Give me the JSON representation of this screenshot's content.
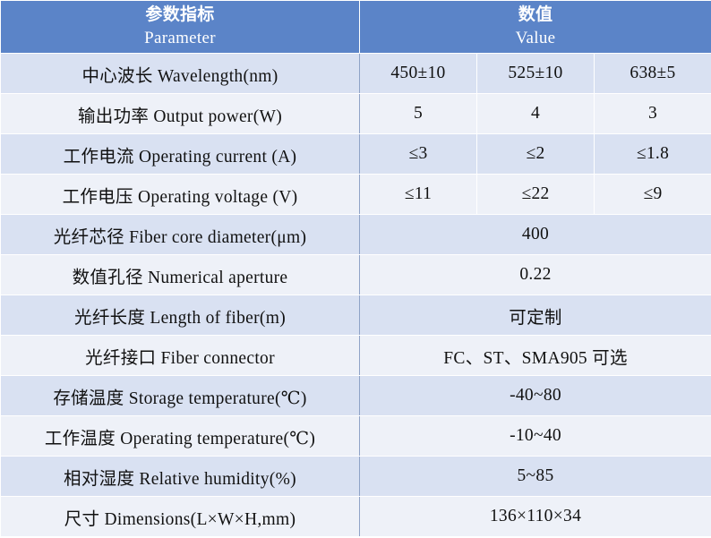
{
  "header": {
    "param_cn": "参数指标",
    "param_en": "Parameter",
    "value_cn": "数值",
    "value_en": "Value"
  },
  "rows": [
    {
      "label": "中心波长 Wavelength(nm)",
      "values": [
        "450±10",
        "525±10",
        "638±5"
      ]
    },
    {
      "label": "输出功率 Output power(W)",
      "values": [
        "5",
        "4",
        "3"
      ]
    },
    {
      "label": "工作电流 Operating current (A)",
      "values": [
        "≤3",
        "≤2",
        "≤1.8"
      ]
    },
    {
      "label": "工作电压 Operating voltage (V)",
      "values": [
        "≤11",
        "≤22",
        "≤9"
      ]
    },
    {
      "label": "光纤芯径 Fiber core diameter(μm)",
      "value": "400"
    },
    {
      "label": "数值孔径 Numerical aperture",
      "value": "0.22"
    },
    {
      "label": "光纤长度 Length of fiber(m)",
      "value": "可定制"
    },
    {
      "label": "光纤接口 Fiber connector",
      "value": "FC、ST、SMA905 可选"
    },
    {
      "label": "存储温度 Storage temperature(℃)",
      "value": "-40~80"
    },
    {
      "label": "工作温度 Operating temperature(℃)",
      "value": "-10~40"
    },
    {
      "label": "相对湿度 Relative humidity(%)",
      "value": "5~85"
    },
    {
      "label": "尺寸 Dimensions(L×W×H,mm)",
      "value": "136×110×34"
    }
  ],
  "colors": {
    "header_bg": "#5b84c8",
    "row_odd_bg": "#d9e1f2",
    "row_even_bg": "#eef1f8"
  }
}
